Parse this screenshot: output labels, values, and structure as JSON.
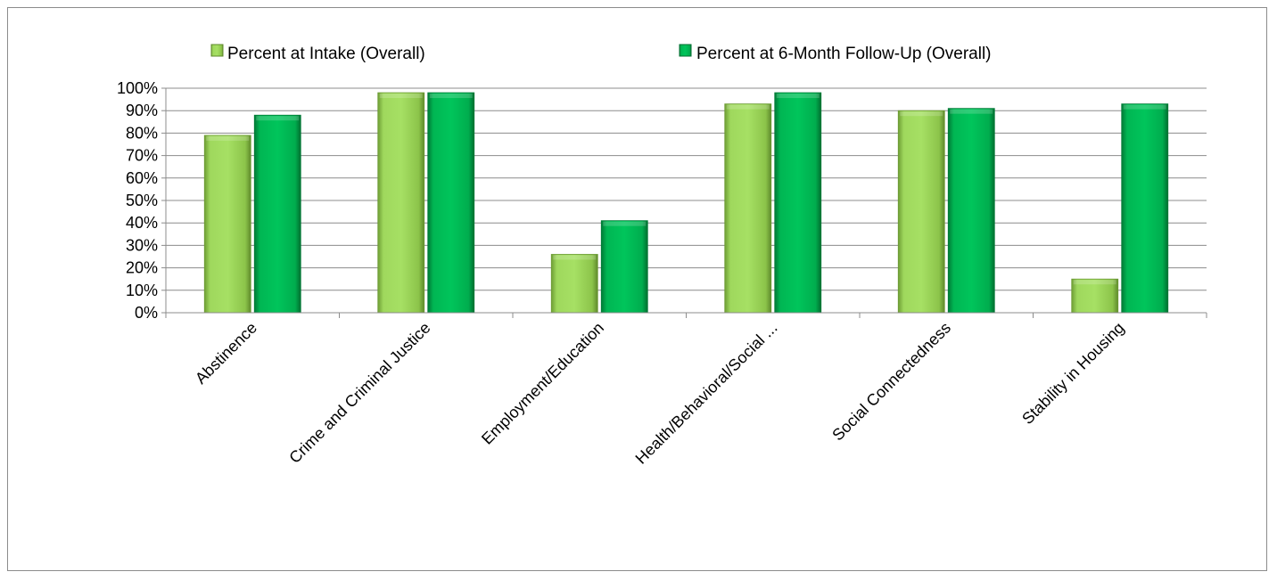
{
  "chart_data": {
    "type": "bar",
    "title": "",
    "xlabel": "",
    "ylabel": "",
    "ylim": [
      0,
      100
    ],
    "y_tick_format": "percent",
    "y_ticks": [
      "0%",
      "10%",
      "20%",
      "30%",
      "40%",
      "50%",
      "60%",
      "70%",
      "80%",
      "90%",
      "100%"
    ],
    "categories": [
      "Abstinence",
      "Crime and Criminal Justice",
      "Employment/Education",
      "Health/Behavioral/Social ...",
      "Social Connectedness",
      "Stability in Housing"
    ],
    "series": [
      {
        "name": "Percent at Intake (Overall)",
        "color": "#92d050",
        "values": [
          79,
          98,
          26,
          93,
          90,
          15
        ]
      },
      {
        "name": "Percent at 6-Month Follow-Up (Overall)",
        "color": "#00b050",
        "values": [
          88,
          98,
          41,
          98,
          91,
          93
        ]
      }
    ],
    "grid": true,
    "legend_position": "top"
  }
}
